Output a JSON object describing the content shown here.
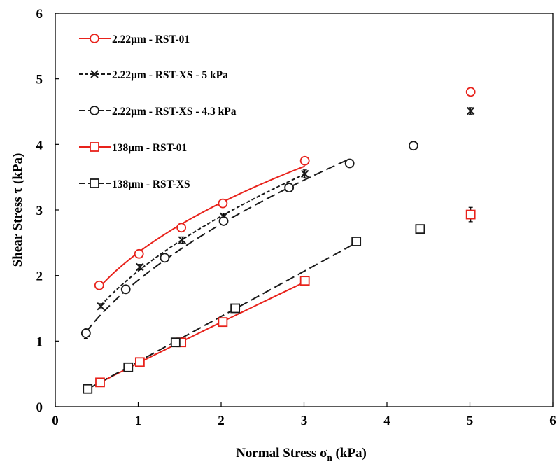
{
  "chart_data": {
    "type": "scatter",
    "title": "",
    "xlabel": "Normal Stress σn (kPa)",
    "xlabel_main": "Normal Stress σ",
    "xlabel_sub": "n",
    "xlabel_tail": " (kPa)",
    "ylabel": "Shear Stress τ (kPa)",
    "xlim": [
      0,
      6
    ],
    "ylim": [
      0,
      6
    ],
    "xticks": [
      "0",
      "1",
      "2",
      "3",
      "4",
      "5",
      "6"
    ],
    "yticks": [
      "0",
      "1",
      "2",
      "3",
      "4",
      "5",
      "6"
    ],
    "grid": false,
    "legend_position": "top-left",
    "series": [
      {
        "name": "2.22μm - RST-01",
        "color": "#e8221b",
        "marker": "circle",
        "line": "solid",
        "x": [
          0.53,
          1.01,
          1.52,
          2.02,
          3.01,
          5.01
        ],
        "y": [
          1.85,
          2.33,
          2.73,
          3.1,
          3.75,
          4.8
        ],
        "yerr": [
          0.03,
          0.04,
          0.03,
          0.04,
          0.05,
          0.05
        ],
        "fit_to": 3.01
      },
      {
        "name": "2.22μm - RST-XS - 5 kPa",
        "color": "#1a1a1a",
        "marker": "x",
        "line": "dotted",
        "x": [
          0.55,
          1.02,
          1.53,
          2.03,
          3.01,
          5.01
        ],
        "y": [
          1.53,
          2.13,
          2.54,
          2.9,
          3.55,
          4.51
        ],
        "yerr": [
          0.04,
          0.04,
          0.05,
          0.05,
          0.06,
          0.05
        ],
        "fit_to": 3.01
      },
      {
        "name": "2.22μm - RST-XS - 4.3 kPa",
        "color": "#1a1a1a",
        "marker": "circle",
        "line": "longdash",
        "x": [
          0.37,
          0.85,
          1.32,
          2.03,
          2.82,
          3.55,
          4.32
        ],
        "y": [
          1.12,
          1.79,
          2.27,
          2.83,
          3.34,
          3.71,
          3.98
        ],
        "yerr": [
          0.08,
          0.04,
          0.04,
          0.05,
          0.04,
          0.04,
          0.03
        ],
        "fit_to": 3.55
      },
      {
        "name": "138μm - RST-01",
        "color": "#e8221b",
        "marker": "square",
        "line": "solid",
        "x": [
          0.54,
          1.02,
          1.52,
          2.02,
          3.01,
          5.01
        ],
        "y": [
          0.37,
          0.68,
          0.98,
          1.29,
          1.92,
          2.93
        ],
        "yerr": [
          0.02,
          0.03,
          0.03,
          0.05,
          0.06,
          0.11
        ],
        "fit_to": 3.01
      },
      {
        "name": "138μm - RST-XS",
        "color": "#1a1a1a",
        "marker": "square",
        "line": "longdash",
        "x": [
          0.39,
          0.88,
          1.45,
          2.17,
          3.63,
          4.4
        ],
        "y": [
          0.27,
          0.6,
          0.98,
          1.5,
          2.52,
          2.71
        ],
        "yerr": [
          0.02,
          0.02,
          0.02,
          0.03,
          0.04,
          0.04
        ],
        "fit_to": 3.63
      }
    ]
  }
}
